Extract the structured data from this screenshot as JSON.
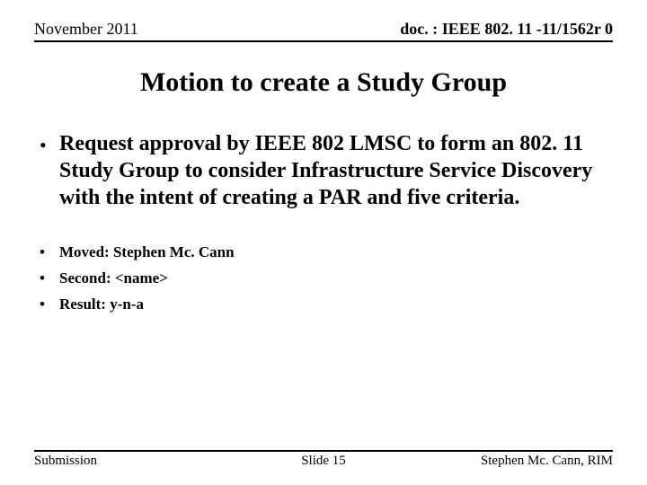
{
  "header": {
    "left": "November 2011",
    "right": "doc. : IEEE 802. 11 -11/1562r 0"
  },
  "title": "Motion to create a Study Group",
  "main_bullet": "Request approval by IEEE 802 LMSC to form an 802. 11 Study Group to consider Infrastructure Service Discovery with the intent of creating a PAR and five criteria.",
  "sub_bullets": [
    "Moved: Stephen Mc. Cann",
    "Second: <name>",
    "Result: y-n-a"
  ],
  "footer": {
    "left": "Submission",
    "center": "Slide 15",
    "right": "Stephen Mc. Cann, RIM"
  },
  "style": {
    "background_color": "#ffffff",
    "text_color": "#000000",
    "rule_color": "#000000",
    "font_family": "Times New Roman",
    "title_fontsize": 30,
    "header_fontsize": 18,
    "body_fontsize": 24,
    "subitem_fontsize": 17,
    "footer_fontsize": 15
  }
}
